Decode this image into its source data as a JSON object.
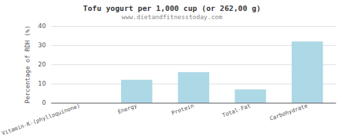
{
  "chart_data": {
    "type": "bar",
    "title": "Tofu yogurt per 1,000 cup (or 262,00 g)",
    "subtitle": "www.dietandfitnesstoday.com",
    "categories": [
      "Vitamin-K-(phylloquinone)",
      "Energy",
      "Protein",
      "Total-Fat",
      "Carbohydrate"
    ],
    "values": [
      0,
      12,
      16,
      7,
      32
    ],
    "color": "#add8e6",
    "ylabel": "Percentage of RDH (%)",
    "ylim": [
      0,
      40
    ],
    "yticks": [
      0,
      10,
      20,
      30,
      40
    ],
    "grid": true
  }
}
